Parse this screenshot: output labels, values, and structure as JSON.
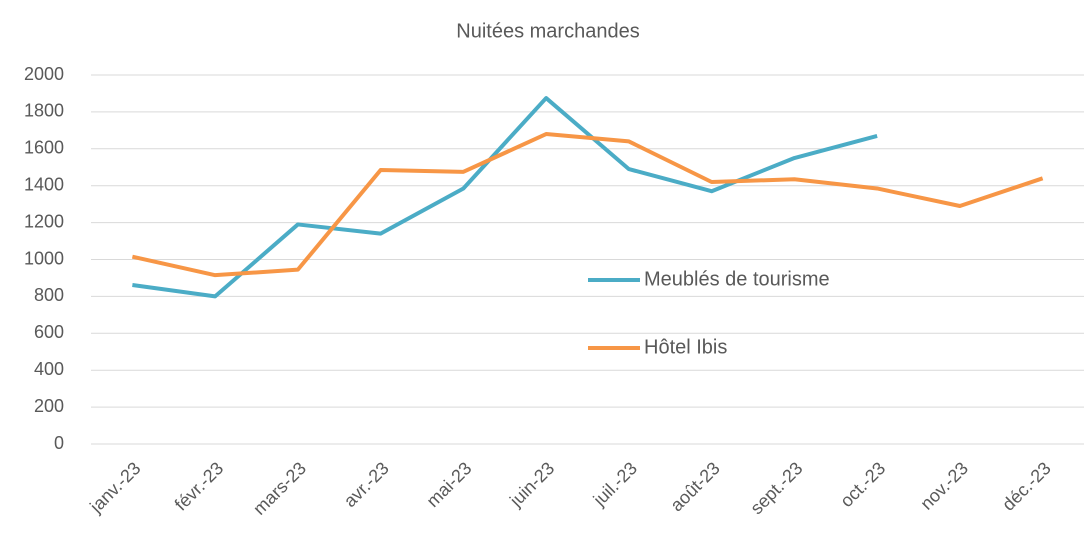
{
  "chart_data": {
    "type": "line",
    "title": "Nuitées marchandes",
    "categories": [
      "janv.-23",
      "févr.-23",
      "mars-23",
      "avr.-23",
      "mai-23",
      "juin-23",
      "juil.-23",
      "août-23",
      "sept.-23",
      "oct.-23",
      "nov.-23",
      "déc.-23"
    ],
    "series": [
      {
        "name": "Meublés de tourisme",
        "color": "#4bacc6",
        "values": [
          862,
          800,
          1190,
          1140,
          1385,
          1875,
          1490,
          1370,
          1550,
          1670,
          null,
          null
        ]
      },
      {
        "name": "Hôtel Ibis",
        "color": "#f79646",
        "values": [
          1015,
          915,
          945,
          1485,
          1475,
          1680,
          1640,
          1420,
          1435,
          1385,
          1290,
          1440
        ]
      }
    ],
    "ylim": [
      0,
      2000
    ],
    "yticks": [
      0,
      200,
      400,
      600,
      800,
      1000,
      1200,
      1400,
      1600,
      1800,
      2000
    ],
    "grid": true
  }
}
